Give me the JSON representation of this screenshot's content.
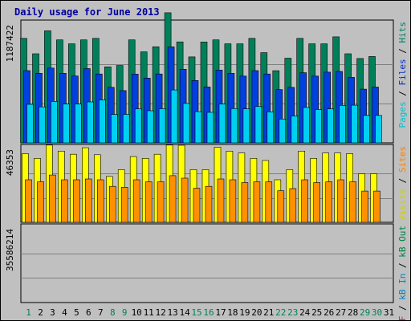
{
  "chart_data": {
    "type": "bar",
    "title": "Daily usage for June 2013",
    "days": [
      "1",
      "2",
      "3",
      "4",
      "5",
      "6",
      "7",
      "8",
      "9",
      "10",
      "11",
      "12",
      "13",
      "14",
      "15",
      "16",
      "17",
      "18",
      "19",
      "20",
      "21",
      "22",
      "23",
      "24",
      "25",
      "26",
      "27",
      "28",
      "29",
      "30",
      "31"
    ],
    "weekend_days": [
      "1",
      "8",
      "9",
      "15",
      "16",
      "22",
      "23",
      "29",
      "30"
    ],
    "panels": [
      {
        "id": "hits",
        "max_label": "1187422",
        "ymax": 1187422,
        "legend": [
          "Pages",
          "Files",
          "Hits"
        ],
        "legend_colors": [
          "#00c0d0",
          "#0030d0",
          "#008060"
        ],
        "series": [
          {
            "name": "Hits",
            "color": "#00805a",
            "values": [
              1052000,
              897000,
              1128000,
              1036000,
              997000,
              1036000,
              1052000,
              765000,
              779000,
              1036000,
              916000,
              967000,
              1309000,
              1016000,
              865000,
              1015000,
              1036000,
              997000,
              997000,
              1052000,
              908000,
              726000,
              852000,
              1052000,
              997000,
              997000,
              1067000,
              897000,
              849000,
              869000
            ]
          },
          {
            "name": "Files",
            "color": "#0040e0",
            "values": [
              727000,
              700000,
              753000,
              700000,
              673000,
              747000,
              693000,
              559000,
              526000,
              692000,
              652000,
              693000,
              966000,
              741000,
              628000,
              562000,
              733000,
              700000,
              672000,
              727000,
              693000,
              536000,
              558000,
              706000,
              672000,
              712000,
              719000,
              659000,
              540000,
              561000
            ]
          },
          {
            "name": "Pages",
            "color": "#00d0f0",
            "values": [
              388000,
              362000,
              418000,
              390000,
              390000,
              412000,
              432000,
              286000,
              287000,
              342000,
              323000,
              343000,
              532000,
              397000,
              314000,
              307000,
              390000,
              345000,
              342000,
              367000,
              312000,
              240000,
              270000,
              356000,
              335000,
              342000,
              377000,
              379000,
              276000,
              276000
            ]
          }
        ]
      },
      {
        "id": "visits",
        "max_label": "46353",
        "ymax": 46353,
        "legend": [
          "Visits",
          "Sites"
        ],
        "legend_colors": [
          "#d0d000",
          "#ff8000"
        ],
        "series": [
          {
            "name": "Visits",
            "color": "#ffff00",
            "values": [
              43600,
              40600,
              49000,
              45200,
              43200,
              47300,
              42900,
              29100,
              33400,
              41700,
              40600,
              43200,
              49000,
              48900,
              33400,
              33400,
              47700,
              45200,
              44000,
              40600,
              39200,
              27000,
              33400,
              45200,
              40600,
              44000,
              44000,
              43600,
              30800,
              30800
            ]
          },
          {
            "name": "Sites",
            "color": "#ff9000",
            "values": [
              27000,
              25700,
              30000,
              27000,
              27000,
              27500,
              27000,
              22800,
              22200,
              27000,
              25700,
              25700,
              29600,
              28000,
              21600,
              22800,
              27500,
              27000,
              25200,
              25700,
              25700,
              20000,
              21400,
              27000,
              25200,
              25700,
              27000,
              25700,
              19800,
              19800
            ]
          }
        ]
      },
      {
        "id": "kbytes",
        "max_label": "35586214",
        "ymax": 35586214,
        "legend": [
          "kB F",
          "kB In",
          "kB Out"
        ],
        "legend_colors": [
          "#e02020",
          "#0080c0",
          "#008040"
        ],
        "series": [
          {
            "name": "kB F",
            "color": "#ff0000",
            "values": [
              26800,
              23300,
              26600,
              25800,
              25400,
              25500,
              24100,
              19600,
              20300,
              24200,
              24300,
              24400,
              24900,
              24200,
              23500,
              22200,
              31600,
              34400,
              37100,
              39200,
              35600,
              28200,
              28200,
              30300,
              25700,
              24200,
              22200,
              23500,
              21300,
              18900
            ]
          }
        ]
      }
    ]
  }
}
